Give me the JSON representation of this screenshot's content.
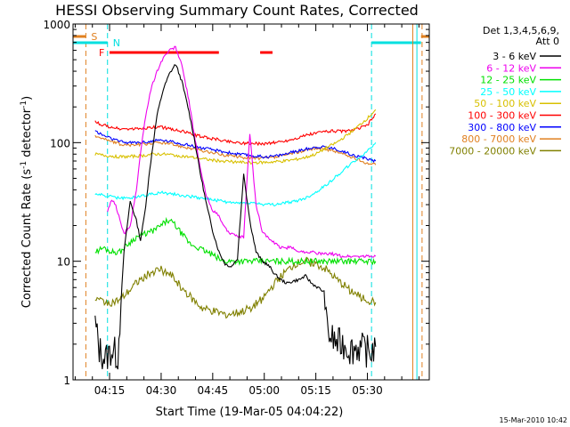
{
  "chart_data": {
    "type": "line",
    "title": "HESSI Observing Summary Count Rates, Corrected",
    "xlabel": "Start Time (19-Mar-05 04:04:22)",
    "ylabel_prefix": "Corrected Count Rate (s",
    "ylabel_sup1": "-1",
    "ylabel_middle": " detector",
    "ylabel_sup2": "-1",
    "ylabel_suffix": ")",
    "ylabel": "Corrected Count Rate (s^-1 detector^-1)",
    "yscale": "log",
    "ylim": [
      1,
      1000
    ],
    "xlim": [
      4.0728,
      5.8
    ],
    "x_unit": "hours UT",
    "x_ticks": [
      {
        "value": 4.25,
        "label": "04:15"
      },
      {
        "value": 4.5,
        "label": "04:30"
      },
      {
        "value": 4.75,
        "label": "04:45"
      },
      {
        "value": 5.0,
        "label": "05:00"
      },
      {
        "value": 5.25,
        "label": "05:15"
      },
      {
        "value": 5.5,
        "label": "05:30"
      }
    ],
    "y_ticks": [
      {
        "value": 1,
        "label": "1"
      },
      {
        "value": 10,
        "label": "10"
      },
      {
        "value": 100,
        "label": "100"
      },
      {
        "value": 1000,
        "label": "1000"
      }
    ],
    "legend_header_line1": "Det 1,3,4,5,6,9,",
    "legend_header_line2": "Att 0",
    "legend_placement": "right, outside plot",
    "series": [
      {
        "name": "3 - 6 keV",
        "color": "#000000",
        "x": [
          4.18,
          4.2,
          4.23,
          4.26,
          4.29,
          4.32,
          4.35,
          4.38,
          4.4,
          4.42,
          4.45,
          4.48,
          4.51,
          4.54,
          4.57,
          4.6,
          4.63,
          4.66,
          4.69,
          4.72,
          4.75,
          4.78,
          4.81,
          4.84,
          4.87,
          4.9,
          4.93,
          4.96,
          4.99,
          5.01,
          5.03,
          5.05,
          5.08,
          5.11,
          5.14,
          5.17,
          5.2,
          5.23,
          5.26,
          5.29,
          5.3,
          5.31,
          5.33,
          5.36,
          5.39,
          5.42,
          5.45,
          5.48,
          5.51,
          5.54
        ],
        "y": [
          3,
          1.8,
          1.5,
          1.8,
          1.6,
          12,
          32,
          22,
          15,
          25,
          70,
          170,
          280,
          380,
          460,
          330,
          200,
          110,
          55,
          30,
          18,
          12,
          9.5,
          9,
          10.5,
          55,
          22,
          12,
          10,
          9.5,
          8.8,
          7.8,
          7,
          6.5,
          6.8,
          7,
          7.5,
          6.5,
          6,
          5.5,
          3,
          2.5,
          2.2,
          2,
          2,
          1.8,
          1.9,
          1.8,
          1.7,
          1.9
        ]
      },
      {
        "name": "6 - 12 keV",
        "color": "#ee00ee",
        "x": [
          4.24,
          4.26,
          4.28,
          4.3,
          4.32,
          4.35,
          4.38,
          4.4,
          4.42,
          4.45,
          4.48,
          4.51,
          4.54,
          4.57,
          4.6,
          4.63,
          4.66,
          4.69,
          4.72,
          4.75,
          4.78,
          4.81,
          4.84,
          4.87,
          4.9,
          4.93,
          4.96,
          4.99,
          5.03,
          5.08,
          5.13,
          5.18,
          5.23,
          5.28,
          5.33,
          5.38,
          5.43,
          5.48,
          5.54
        ],
        "y": [
          26,
          33,
          30,
          22,
          17,
          20,
          40,
          80,
          150,
          280,
          400,
          520,
          600,
          640,
          450,
          250,
          120,
          60,
          35,
          27,
          24,
          19,
          17,
          16,
          16,
          120,
          30,
          18,
          15,
          13,
          13,
          12,
          12,
          11.5,
          11.5,
          11,
          11,
          11,
          11
        ]
      },
      {
        "name": "12 - 25 keV",
        "color": "#00e000",
        "x": [
          4.18,
          4.22,
          4.26,
          4.3,
          4.34,
          4.38,
          4.42,
          4.46,
          4.5,
          4.53,
          4.56,
          4.6,
          4.64,
          4.68,
          4.72,
          4.76,
          4.8,
          4.84,
          4.88,
          4.92,
          4.96,
          5.0,
          5.04,
          5.08,
          5.12,
          5.16,
          5.2,
          5.24,
          5.28,
          5.32,
          5.36,
          5.4,
          5.44,
          5.48,
          5.54
        ],
        "y": [
          12,
          13,
          12,
          12,
          14,
          16,
          17,
          18,
          20,
          22,
          21,
          17,
          14,
          13,
          12,
          11,
          10,
          10,
          10,
          10,
          10,
          10,
          10,
          10,
          10,
          10,
          10,
          10,
          10,
          10,
          10,
          10,
          10,
          10,
          10
        ]
      },
      {
        "name": "25 - 50 keV",
        "color": "#00ffff",
        "x": [
          4.18,
          4.22,
          4.26,
          4.3,
          4.34,
          4.38,
          4.42,
          4.46,
          4.5,
          4.55,
          4.6,
          4.65,
          4.7,
          4.75,
          4.8,
          4.85,
          4.9,
          4.95,
          5.0,
          5.05,
          5.1,
          5.15,
          5.2,
          5.25,
          5.3,
          5.35,
          5.4,
          5.45,
          5.5,
          5.54
        ],
        "y": [
          37,
          36,
          35,
          34,
          34,
          35,
          36,
          37,
          38,
          37,
          36,
          35,
          34,
          33,
          32,
          31,
          31,
          31,
          30,
          30,
          31,
          32,
          34,
          38,
          44,
          52,
          62,
          72,
          85,
          100
        ]
      },
      {
        "name": "50 - 100 keV",
        "color": "#d8c000",
        "x": [
          4.18,
          4.22,
          4.26,
          4.3,
          4.34,
          4.38,
          4.42,
          4.46,
          4.5,
          4.55,
          4.6,
          4.65,
          4.7,
          4.75,
          4.8,
          4.85,
          4.9,
          4.95,
          5.0,
          5.05,
          5.1,
          5.15,
          5.2,
          5.25,
          5.3,
          5.35,
          5.4,
          5.45,
          5.5,
          5.54
        ],
        "y": [
          80,
          78,
          77,
          76,
          76,
          77,
          78,
          80,
          80,
          79,
          77,
          75,
          73,
          71,
          70,
          69,
          68,
          68,
          68,
          69,
          70,
          72,
          75,
          80,
          90,
          100,
          115,
          135,
          160,
          190
        ]
      },
      {
        "name": "100 - 300 keV",
        "color": "#ff0000",
        "x": [
          4.18,
          4.22,
          4.26,
          4.3,
          4.34,
          4.38,
          4.42,
          4.46,
          4.5,
          4.55,
          4.6,
          4.65,
          4.7,
          4.75,
          4.8,
          4.85,
          4.9,
          4.95,
          5.0,
          5.05,
          5.1,
          5.15,
          5.2,
          5.25,
          5.3,
          5.35,
          5.4,
          5.45,
          5.5,
          5.54
        ],
        "y": [
          150,
          140,
          135,
          130,
          130,
          130,
          132,
          135,
          135,
          130,
          125,
          118,
          112,
          108,
          104,
          101,
          99,
          98,
          98,
          100,
          103,
          108,
          115,
          120,
          125,
          125,
          125,
          130,
          140,
          175
        ]
      },
      {
        "name": "300 - 800 keV",
        "color": "#0000ff",
        "x": [
          4.18,
          4.22,
          4.26,
          4.3,
          4.34,
          4.38,
          4.42,
          4.46,
          4.5,
          4.55,
          4.6,
          4.65,
          4.7,
          4.75,
          4.8,
          4.85,
          4.9,
          4.95,
          5.0,
          5.05,
          5.1,
          5.15,
          5.2,
          5.25,
          5.3,
          5.35,
          5.4,
          5.45,
          5.5,
          5.54
        ],
        "y": [
          125,
          115,
          108,
          102,
          100,
          100,
          101,
          103,
          105,
          102,
          98,
          94,
          90,
          87,
          84,
          81,
          79,
          77,
          76,
          77,
          80,
          84,
          88,
          92,
          92,
          88,
          82,
          77,
          73,
          70
        ]
      },
      {
        "name": "800 - 7000 keV",
        "color": "#e08020",
        "x": [
          4.18,
          4.22,
          4.26,
          4.3,
          4.34,
          4.38,
          4.42,
          4.46,
          4.5,
          4.55,
          4.6,
          4.65,
          4.7,
          4.75,
          4.8,
          4.85,
          4.9,
          4.95,
          5.0,
          5.05,
          5.1,
          5.15,
          5.2,
          5.25,
          5.3,
          5.35,
          5.4,
          5.45,
          5.5,
          5.54
        ],
        "y": [
          115,
          108,
          102,
          97,
          95,
          96,
          97,
          99,
          100,
          97,
          93,
          89,
          85,
          82,
          79,
          77,
          75,
          74,
          74,
          75,
          78,
          82,
          86,
          90,
          88,
          84,
          78,
          72,
          67,
          65
        ]
      },
      {
        "name": "7000 - 20000 keV",
        "color": "#808000",
        "x": [
          4.18,
          4.22,
          4.26,
          4.3,
          4.34,
          4.38,
          4.42,
          4.46,
          4.5,
          4.55,
          4.6,
          4.65,
          4.7,
          4.75,
          4.8,
          4.85,
          4.9,
          4.95,
          5.0,
          5.05,
          5.1,
          5.15,
          5.2,
          5.25,
          5.3,
          5.35,
          5.4,
          5.45,
          5.5,
          5.54
        ],
        "y": [
          4.8,
          4.6,
          4.5,
          4.7,
          5.5,
          6.5,
          7.5,
          8.2,
          8.5,
          7.5,
          6,
          4.8,
          4,
          3.8,
          3.6,
          3.6,
          3.8,
          4.2,
          5,
          6.5,
          8,
          9.5,
          10,
          9.5,
          8.5,
          7,
          6,
          5.2,
          4.7,
          4.5
        ]
      }
    ],
    "flags": [
      {
        "label": "S",
        "color": "#e08020",
        "row": "upper",
        "segments": [
          [
            4.0728,
            4.135
          ],
          [
            5.76,
            5.8
          ]
        ],
        "marker_lines": [
          4.135,
          5.765
        ]
      },
      {
        "label": "N",
        "color": "#00e0e0",
        "row": "lower",
        "segments": [
          [
            4.0728,
            4.24
          ],
          [
            5.52,
            5.76
          ]
        ],
        "marker_lines": [
          4.24,
          5.52
        ]
      },
      {
        "label": "F",
        "color": "#ff0000",
        "row": "flare",
        "segments": [
          [
            4.25,
            4.78
          ],
          [
            4.98,
            5.04
          ]
        ]
      }
    ],
    "attenuator_lines": [
      {
        "x": 5.72,
        "color": "#e08020"
      },
      {
        "x": 5.74,
        "color": "#00e0e0"
      }
    ]
  },
  "timestamp": "15-Mar-2010 10:42"
}
